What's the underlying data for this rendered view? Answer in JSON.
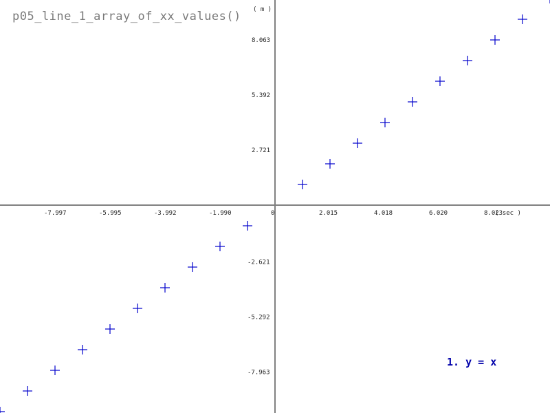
{
  "title": "p05_line_1_array_of_xx_values()",
  "chart_data": {
    "type": "scatter",
    "title": "p05_line_1_array_of_xx_values()",
    "xlabel": "( sec )",
    "ylabel": "( m )",
    "x_ticks": [
      "-7.997",
      "-5.995",
      "-3.992",
      "-1.990",
      "0",
      "2.015",
      "4.018",
      "6.020",
      "8.023"
    ],
    "y_ticks_pos": [
      "8.063",
      "5.392",
      "2.721"
    ],
    "y_ticks_neg": [
      "-2.621",
      "-5.292",
      "-7.963"
    ],
    "xlim": [
      -10,
      10
    ],
    "ylim": [
      -10,
      10
    ],
    "legend": "1. y = x",
    "marker_color": "#0000cc",
    "axis_color": "#808080",
    "series": [
      {
        "name": "1. y = x",
        "x": [
          -10,
          -9,
          -8,
          -7,
          -6,
          -5,
          -4,
          -3,
          -2,
          -1,
          1,
          2,
          3,
          4,
          5,
          6,
          7,
          8,
          9,
          10
        ],
        "y": [
          -10,
          -9,
          -8,
          -7,
          -6,
          -5,
          -4,
          -3,
          -2,
          -1,
          1,
          2,
          3,
          4,
          5,
          6,
          7,
          8,
          9,
          10
        ]
      }
    ]
  }
}
